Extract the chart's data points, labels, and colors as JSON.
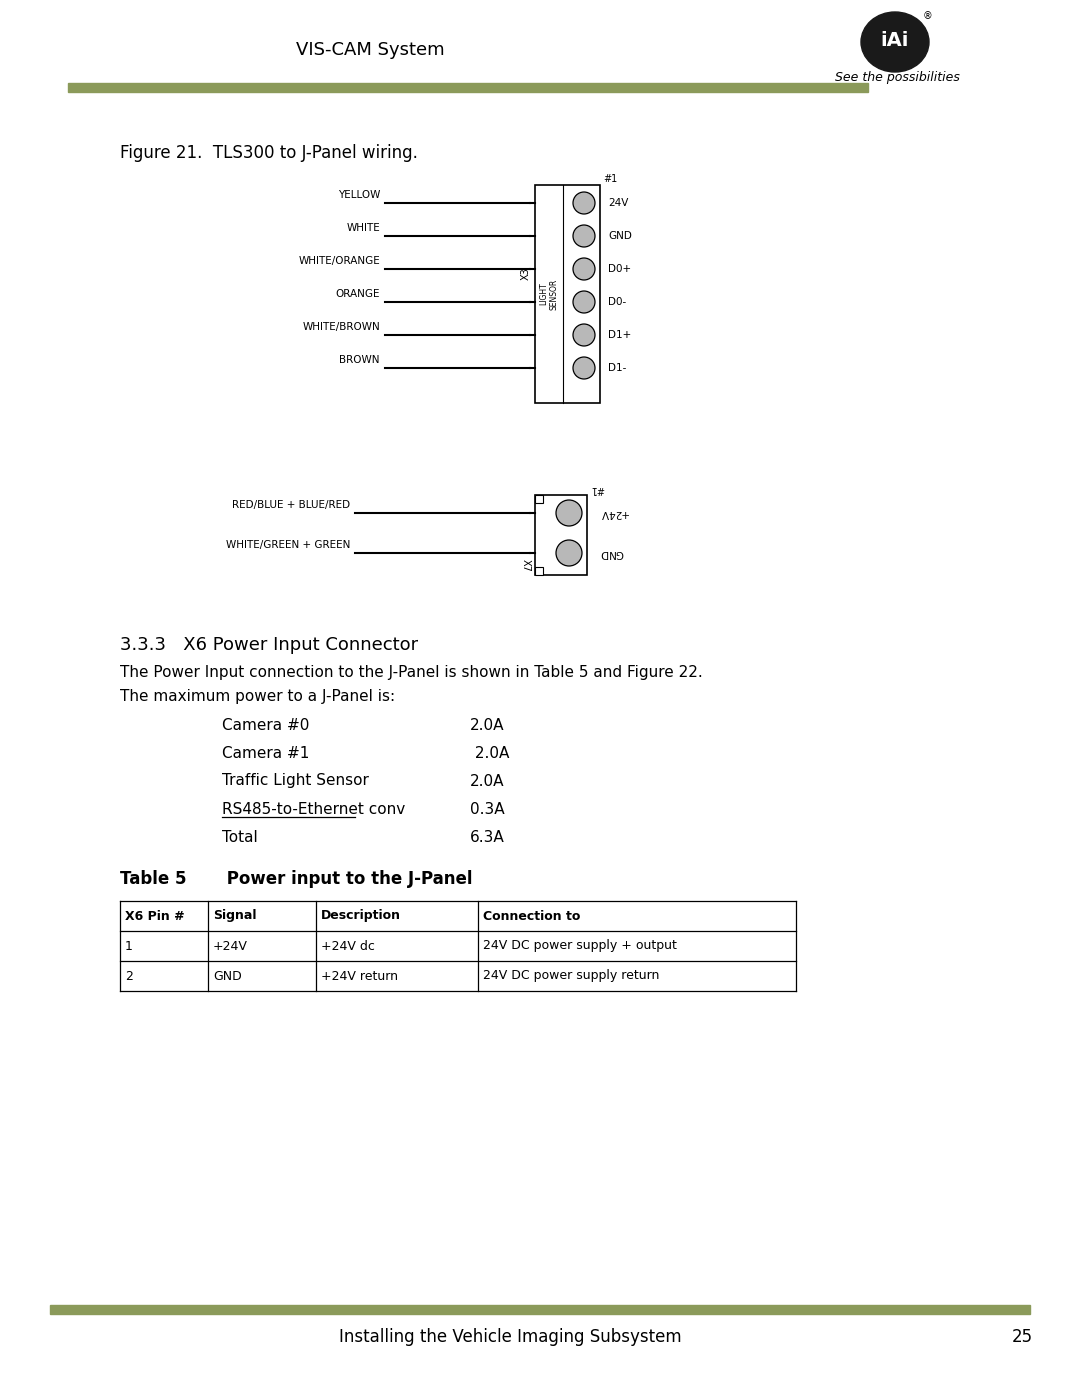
{
  "page_title": "VIS-CAM System",
  "footer_text": "Installing the Vehicle Imaging Subsystem",
  "page_number": "25",
  "header_line_color": "#8B9A5A",
  "figure_caption": "Figure 21.  TLS300 to J-Panel wiring.",
  "section_title": "3.3.3   X6 Power Input Connector",
  "section_text1": "The Power Input connection to the J-Panel is shown in Table 5 and Figure 22.",
  "section_text2": "The maximum power to a J-Panel is:",
  "power_items": [
    [
      "Camera #0",
      "2.0A"
    ],
    [
      "Camera #1",
      " 2.0A"
    ],
    [
      "Traffic Light Sensor",
      "2.0A"
    ],
    [
      "RS485-to-Ethernet conv",
      "0.3A"
    ],
    [
      "Total",
      "6.3A"
    ]
  ],
  "underline_item": "RS485-to-Ethernet conv",
  "table_title": "Table 5       Power input to the J-Panel",
  "table_headers": [
    "X6 Pin #",
    "Signal",
    "Description",
    "Connection to"
  ],
  "table_rows": [
    [
      "1",
      "+24V",
      "+24V dc",
      "24V DC power supply + output"
    ],
    [
      "2",
      "GND",
      "+24V return",
      "24V DC power supply return"
    ]
  ],
  "connector1_wires": [
    "YELLOW",
    "WHITE",
    "WHITE/ORANGE",
    "ORANGE",
    "WHITE/BROWN",
    "BROWN"
  ],
  "connector1_pins": [
    "24V",
    "GND",
    "D0+",
    "D0-",
    "D1+",
    "D1-"
  ],
  "connector2_wires": [
    "RED/BLUE + BLUE/RED",
    "WHITE/GREEN + GREEN"
  ],
  "connector2_pins": [
    "+24V",
    "GND"
  ],
  "bg_color": "#FFFFFF",
  "text_color": "#000000",
  "olive_line_color": "#8B9A5A",
  "logo_bg": "#1a1a1a",
  "logo_text": "iAi"
}
